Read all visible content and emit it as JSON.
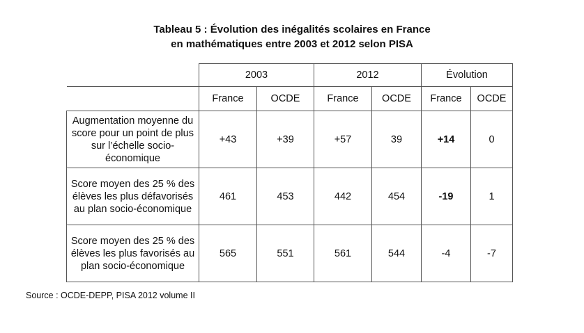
{
  "document": {
    "title_line1": "Tableau 5 : Évolution des inégalités scolaires en France",
    "title_line2": "en mathématiques entre 2003 et 2012 selon PISA",
    "source": "Source : OCDE-DEPP, PISA 2012 volume II"
  },
  "table": {
    "groups": [
      "2003",
      "2012",
      "Évolution"
    ],
    "subheaders": [
      "France",
      "OCDE",
      "France",
      "OCDE",
      "France",
      "OCDE"
    ],
    "rows": [
      {
        "label": "Augmentation moyenne du score pour un point de plus sur l’échelle socio-économique",
        "values": [
          "+43",
          "+39",
          "+57",
          "39",
          "+14",
          "0"
        ]
      },
      {
        "label": "Score moyen des 25 % des élèves les plus défavorisés au plan socio-économique",
        "values": [
          "461",
          "453",
          "442",
          "454",
          "-19",
          "1"
        ]
      },
      {
        "label": "Score moyen des 25 % des élèves les plus favorisés au plan socio-économique",
        "values": [
          "565",
          "551",
          "561",
          "544",
          "-4",
          "-7"
        ]
      }
    ]
  }
}
